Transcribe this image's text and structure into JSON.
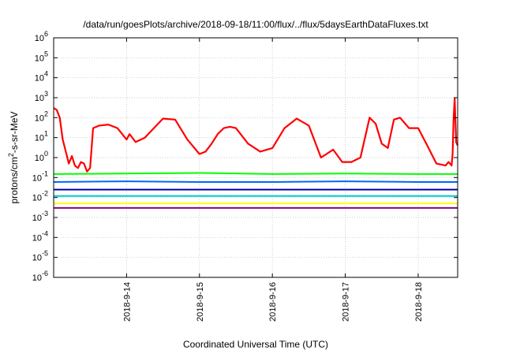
{
  "chart_data": {
    "type": "line",
    "title": "/data/run/goesPlots/archive/2018-09-18/11:00/flux/../flux/5daysEarthDataFluxes.txt",
    "xlabel": "Coordinated Universal Time (UTC)",
    "ylabel_parts": [
      "protons/cm",
      "2",
      "-s-sr-MeV"
    ],
    "yscale": "log",
    "ylim": [
      1e-06,
      1000000.0
    ],
    "xlim": [
      "2018-09-13 00:00",
      "2018-09-18 13:00"
    ],
    "grid": true,
    "y_ticks": [
      {
        "label": "10",
        "exp": "-6",
        "value": 1e-06
      },
      {
        "label": "10",
        "exp": "-5",
        "value": 1e-05
      },
      {
        "label": "10",
        "exp": "-4",
        "value": 0.0001
      },
      {
        "label": "10",
        "exp": "-3",
        "value": 0.001
      },
      {
        "label": "10",
        "exp": "-2",
        "value": 0.01
      },
      {
        "label": "10",
        "exp": "-1",
        "value": 0.1
      },
      {
        "label": "10",
        "exp": "0",
        "value": 1.0
      },
      {
        "label": "10",
        "exp": "1",
        "value": 10.0
      },
      {
        "label": "10",
        "exp": "2",
        "value": 100.0
      },
      {
        "label": "10",
        "exp": "3",
        "value": 1000.0
      },
      {
        "label": "10",
        "exp": "4",
        "value": 10000.0
      },
      {
        "label": "10",
        "exp": "5",
        "value": 100000.0
      },
      {
        "label": "10",
        "exp": "6",
        "value": 1000000.0
      }
    ],
    "x_ticks": [
      {
        "label": "2018-9-14",
        "value": "2018-09-14 00:00"
      },
      {
        "label": "2018-9-15",
        "value": "2018-09-15 00:00"
      },
      {
        "label": "2018-9-16",
        "value": "2018-09-16 00:00"
      },
      {
        "label": "2018-9-17",
        "value": "2018-09-17 00:00"
      },
      {
        "label": "2018-9-18",
        "value": "2018-09-18 00:00"
      }
    ],
    "series": [
      {
        "color": "#ff0000",
        "x": [
          "2018-09-13 00:00",
          "2018-09-13 01:00",
          "2018-09-13 02:00",
          "2018-09-13 03:00",
          "2018-09-13 04:00",
          "2018-09-13 05:00",
          "2018-09-13 06:00",
          "2018-09-13 07:00",
          "2018-09-13 08:00",
          "2018-09-13 09:00",
          "2018-09-13 10:00",
          "2018-09-13 11:00",
          "2018-09-13 12:00",
          "2018-09-13 13:00",
          "2018-09-13 15:00",
          "2018-09-13 18:00",
          "2018-09-13 21:00",
          "2018-09-14 00:00",
          "2018-09-14 01:00",
          "2018-09-14 03:00",
          "2018-09-14 06:00",
          "2018-09-14 09:00",
          "2018-09-14 12:00",
          "2018-09-14 16:00",
          "2018-09-14 20:00",
          "2018-09-15 00:00",
          "2018-09-15 02:00",
          "2018-09-15 04:00",
          "2018-09-15 06:00",
          "2018-09-15 08:00",
          "2018-09-15 10:00",
          "2018-09-15 12:00",
          "2018-09-15 16:00",
          "2018-09-15 20:00",
          "2018-09-16 00:00",
          "2018-09-16 04:00",
          "2018-09-16 08:00",
          "2018-09-16 12:00",
          "2018-09-16 16:00",
          "2018-09-16 20:00",
          "2018-09-16 23:00",
          "2018-09-17 02:00",
          "2018-09-17 05:00",
          "2018-09-17 08:00",
          "2018-09-17 10:00",
          "2018-09-17 12:00",
          "2018-09-17 14:00",
          "2018-09-17 16:00",
          "2018-09-17 18:00",
          "2018-09-17 21:00",
          "2018-09-18 00:00",
          "2018-09-18 03:00",
          "2018-09-18 06:00",
          "2018-09-18 09:00",
          "2018-09-18 10:00",
          "2018-09-18 11:00",
          "2018-09-18 11:20",
          "2018-09-18 11:40",
          "2018-09-18 12:00",
          "2018-09-18 12:30",
          "2018-09-18 13:00"
        ],
        "y": [
          300,
          250,
          100,
          8,
          2,
          0.5,
          1.2,
          0.4,
          0.3,
          0.6,
          0.5,
          0.2,
          0.3,
          30,
          40,
          45,
          30,
          8,
          15,
          6,
          10,
          30,
          90,
          80,
          8,
          1.5,
          2,
          5,
          15,
          30,
          35,
          30,
          5,
          2,
          3,
          30,
          90,
          40,
          1,
          2.5,
          0.6,
          0.6,
          1,
          100,
          50,
          5,
          3,
          80,
          100,
          30,
          30,
          4,
          0.5,
          0.4,
          0.6,
          0.4,
          1.5,
          100,
          900,
          6,
          4
        ]
      },
      {
        "color": "#00ff00",
        "x": [
          "2018-09-13 00:00",
          "2018-09-14 00:00",
          "2018-09-15 00:00",
          "2018-09-16 00:00",
          "2018-09-17 00:00",
          "2018-09-18 00:00",
          "2018-09-18 13:00"
        ],
        "y": [
          0.15,
          0.16,
          0.17,
          0.15,
          0.16,
          0.15,
          0.15
        ]
      },
      {
        "color": "#0066ff",
        "x": [
          "2018-09-13 00:00",
          "2018-09-14 00:00",
          "2018-09-15 00:00",
          "2018-09-16 00:00",
          "2018-09-17 00:00",
          "2018-09-18 00:00",
          "2018-09-18 13:00"
        ],
        "y": [
          0.06,
          0.065,
          0.06,
          0.06,
          0.065,
          0.06,
          0.06
        ]
      },
      {
        "color": "#0000aa",
        "x": [
          "2018-09-13 00:00",
          "2018-09-14 00:00",
          "2018-09-15 00:00",
          "2018-09-16 00:00",
          "2018-09-17 00:00",
          "2018-09-18 00:00",
          "2018-09-18 13:00"
        ],
        "y": [
          0.025,
          0.025,
          0.025,
          0.025,
          0.025,
          0.025,
          0.025
        ]
      },
      {
        "color": "#00cccc",
        "x": [
          "2018-09-13 00:00",
          "2018-09-14 00:00",
          "2018-09-15 00:00",
          "2018-09-16 00:00",
          "2018-09-17 00:00",
          "2018-09-18 00:00",
          "2018-09-18 13:00"
        ],
        "y": [
          0.012,
          0.012,
          0.012,
          0.012,
          0.012,
          0.012,
          0.012
        ]
      },
      {
        "color": "#ffff00",
        "x": [
          "2018-09-13 00:00",
          "2018-09-14 00:00",
          "2018-09-15 00:00",
          "2018-09-16 00:00",
          "2018-09-17 00:00",
          "2018-09-18 00:00",
          "2018-09-18 13:00"
        ],
        "y": [
          0.005,
          0.005,
          0.005,
          0.005,
          0.005,
          0.005,
          0.005
        ]
      },
      {
        "color": "#880088",
        "x": [
          "2018-09-13 00:00",
          "2018-09-14 00:00",
          "2018-09-15 00:00",
          "2018-09-16 00:00",
          "2018-09-17 00:00",
          "2018-09-18 00:00",
          "2018-09-18 13:00"
        ],
        "y": [
          0.003,
          0.003,
          0.003,
          0.003,
          0.003,
          0.003,
          0.003
        ]
      }
    ]
  }
}
